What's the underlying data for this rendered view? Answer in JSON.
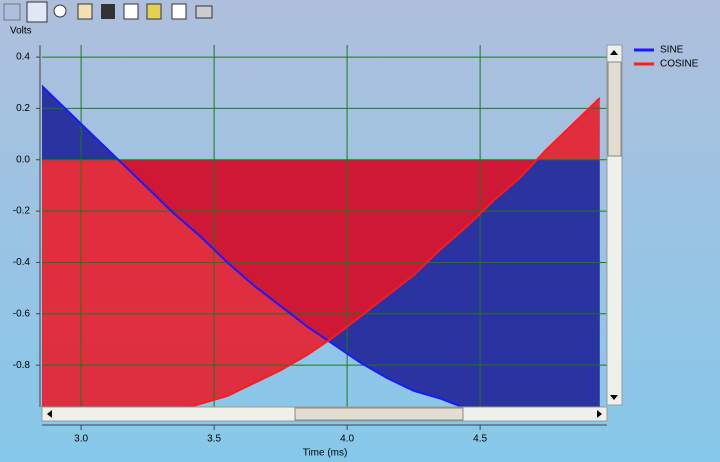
{
  "chart_data": {
    "type": "area",
    "y_label": "Volts",
    "x_label": "Time (ms)",
    "x": [
      2.85,
      2.95,
      3.05,
      3.15,
      3.25,
      3.35,
      3.45,
      3.55,
      3.65,
      3.75,
      3.85,
      3.95,
      4.05,
      4.15,
      4.25,
      4.35,
      4.45,
      4.55,
      4.65,
      4.75,
      4.85,
      4.95
    ],
    "series": [
      {
        "name": "SINE",
        "color": "#1a1aff",
        "fill": "#2a33a0",
        "values": [
          0.29,
          0.19,
          0.09,
          -0.01,
          -0.11,
          -0.21,
          -0.3,
          -0.4,
          -0.49,
          -0.57,
          -0.65,
          -0.72,
          -0.79,
          -0.85,
          -0.9,
          -0.93,
          -0.97,
          -0.99,
          -1.0,
          -1.0,
          -0.99,
          -0.97
        ]
      },
      {
        "name": "COSINE",
        "color": "#ff1a1a",
        "fill": "rgba(236,20,34,0.85)",
        "values": [
          -0.96,
          -0.98,
          -1.0,
          -1.0,
          -0.99,
          -0.98,
          -0.95,
          -0.92,
          -0.87,
          -0.82,
          -0.76,
          -0.69,
          -0.61,
          -0.53,
          -0.45,
          -0.35,
          -0.26,
          -0.16,
          -0.07,
          0.04,
          0.14,
          0.24
        ]
      }
    ],
    "xlim": [
      2.853,
      4.977
    ],
    "ylim": [
      -0.963,
      0.447
    ],
    "xticks": [
      {
        "value": 3,
        "label": "3.0"
      },
      {
        "value": 3.5,
        "label": "3.5"
      },
      {
        "value": 4,
        "label": "4.0"
      },
      {
        "value": 4.5,
        "label": "4.5"
      }
    ],
    "yticks": [
      0.4,
      0.2,
      {
        "value": 0,
        "label": "0.0"
      },
      -0.2,
      -0.4,
      -0.6,
      -0.8
    ],
    "grid": true,
    "grid_color": "#1a7a1a",
    "legend": "right"
  }
}
